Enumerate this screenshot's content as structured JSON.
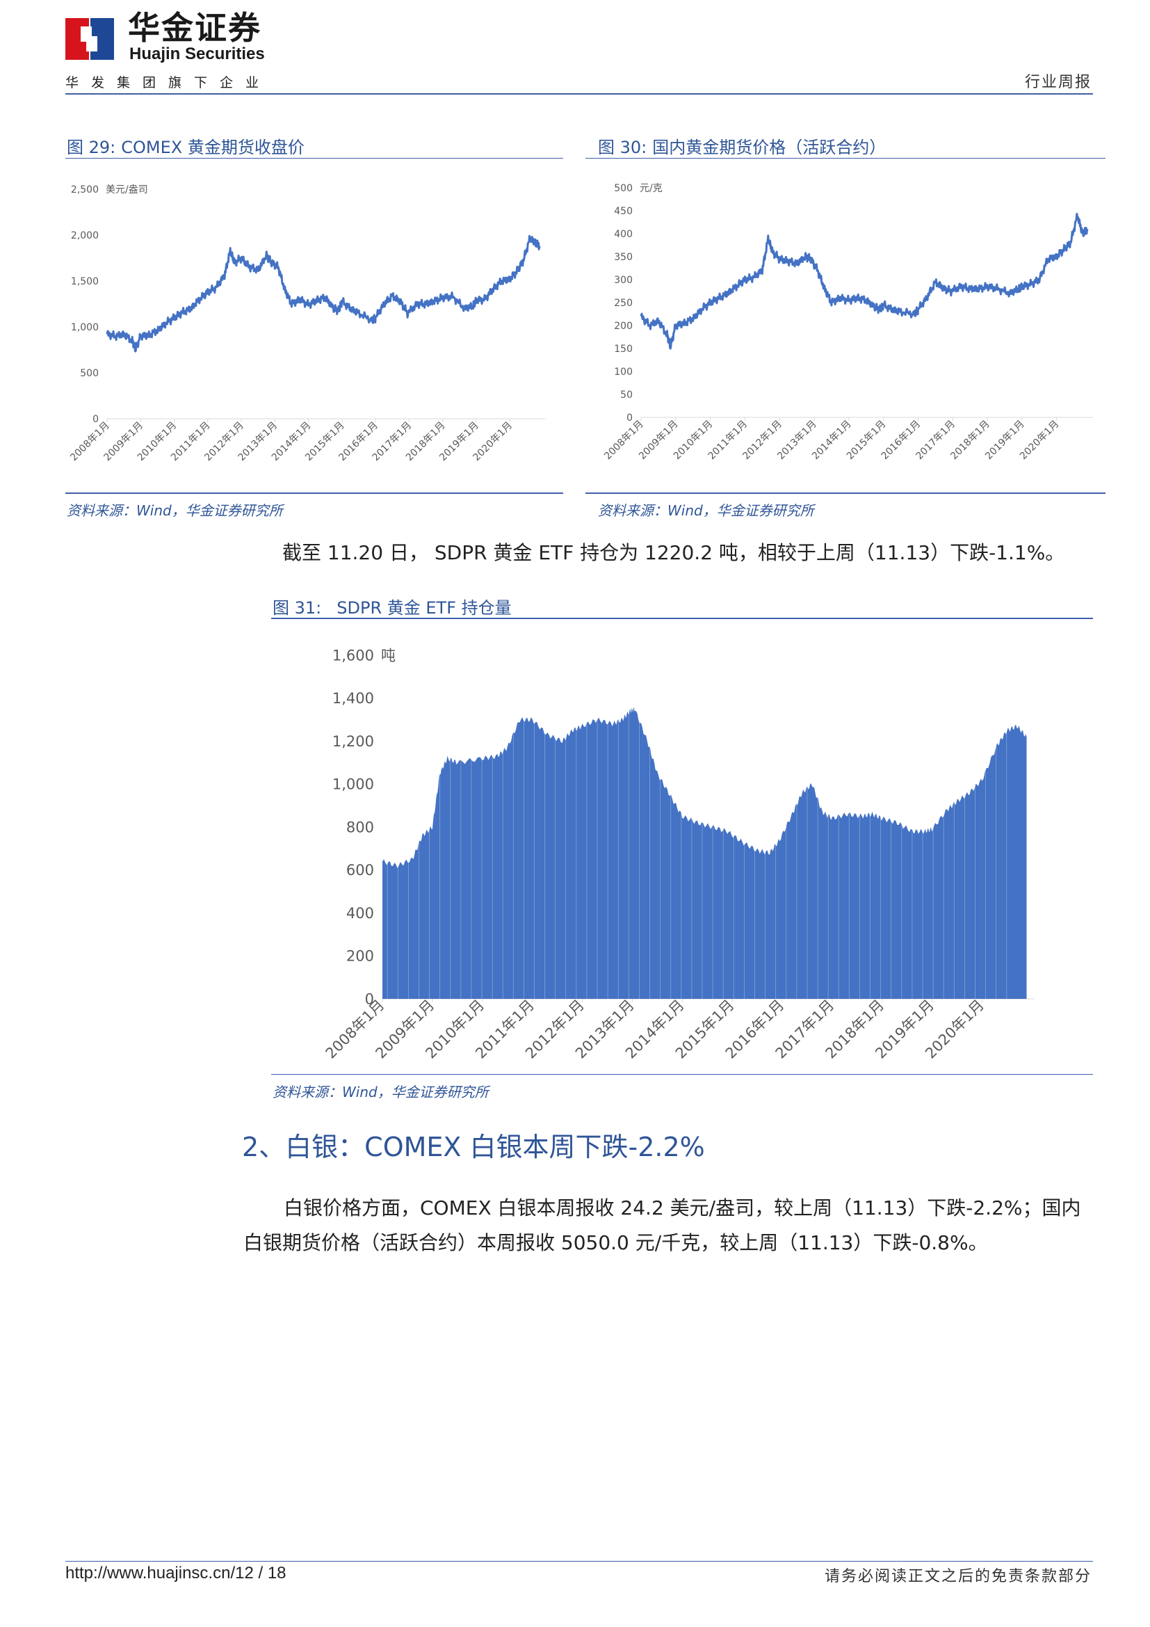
{
  "header": {
    "brand_cn": "华金证券",
    "brand_en": "Huajin Securities",
    "brand_sub": "华发集团旗下企业",
    "report_type": "行业周报",
    "logo_colors": {
      "red": "#d7141d",
      "blue": "#1e4796"
    }
  },
  "figures": {
    "fig29": {
      "number": "图 29:",
      "title": "COMEX 黄金期货收盘价",
      "source": "资料来源：Wind，华金证券研究所"
    },
    "fig30": {
      "number": "图 30:",
      "title": "国内黄金期货价格（活跃合约）",
      "source": "资料来源：Wind，华金证券研究所"
    },
    "fig31": {
      "number": "图 31:",
      "title": "SDPR 黄金 ETF 持仓量",
      "source": "资料来源：Wind，华金证券研究所"
    }
  },
  "body": {
    "etf_sentence": "截至 11.20 日， SDPR 黄金 ETF 持仓为 1220.2 吨，相较于上周（11.13）下跌-1.1%。",
    "section_heading": "2、白银：COMEX 白银本周下跌-2.2%",
    "silver_line1": "白银价格方面，COMEX 白银本周报收 24.2 美元/盎司，较上周（11.13）下跌-2.2%；国内",
    "silver_line2": "白银期货价格（活跃合约）本周报收 5050.0 元/千克，较上周（11.13）下跌-0.8%。"
  },
  "footer": {
    "url_page": "http://www.huajinsc.cn/12 / 18",
    "disclaimer": "请务必阅读正文之后的免责条款部分"
  },
  "chart_data": [
    {
      "id": "fig29",
      "type": "line",
      "color": "#4472c4",
      "unit_label": "美元/盎司",
      "ylim": [
        0,
        2500
      ],
      "yticks": [
        "0",
        "500",
        "1,000",
        "1,500",
        "2,000",
        "2,500"
      ],
      "xlabels": [
        "2008年1月",
        "2009年1月",
        "2010年1月",
        "2011年1月",
        "2012年1月",
        "2013年1月",
        "2014年1月",
        "2015年1月",
        "2016年1月",
        "2017年1月",
        "2018年1月",
        "2019年1月",
        "2020年1月"
      ],
      "x": [
        2008.0,
        2008.25,
        2008.5,
        2008.75,
        2008.85,
        2009.0,
        2009.25,
        2009.5,
        2009.75,
        2010.0,
        2010.25,
        2010.5,
        2010.75,
        2011.0,
        2011.25,
        2011.5,
        2011.67,
        2011.8,
        2012.0,
        2012.25,
        2012.5,
        2012.75,
        2012.9,
        2013.1,
        2013.3,
        2013.5,
        2013.75,
        2014.0,
        2014.25,
        2014.5,
        2014.75,
        2014.9,
        2015.0,
        2015.25,
        2015.5,
        2015.9,
        2016.0,
        2016.25,
        2016.5,
        2016.75,
        2016.95,
        2017.25,
        2017.5,
        2017.75,
        2018.0,
        2018.3,
        2018.65,
        2018.9,
        2019.0,
        2019.25,
        2019.5,
        2019.75,
        2020.0,
        2020.2,
        2020.4,
        2020.6,
        2020.75,
        2020.89
      ],
      "values": [
        920,
        900,
        920,
        850,
        760,
        900,
        910,
        960,
        1040,
        1100,
        1160,
        1200,
        1300,
        1380,
        1430,
        1560,
        1830,
        1700,
        1750,
        1650,
        1620,
        1780,
        1700,
        1650,
        1400,
        1250,
        1300,
        1240,
        1290,
        1320,
        1200,
        1180,
        1280,
        1200,
        1150,
        1070,
        1100,
        1250,
        1340,
        1270,
        1150,
        1250,
        1250,
        1280,
        1320,
        1330,
        1200,
        1230,
        1290,
        1300,
        1410,
        1500,
        1520,
        1600,
        1720,
        1970,
        1920,
        1880
      ]
    },
    {
      "id": "fig30",
      "type": "line",
      "color": "#4472c4",
      "unit_label": "元/克",
      "ylim": [
        0,
        500
      ],
      "yticks": [
        "0",
        "50",
        "100",
        "150",
        "200",
        "250",
        "300",
        "350",
        "400",
        "450",
        "500"
      ],
      "xlabels": [
        "2008年1月",
        "2009年1月",
        "2010年1月",
        "2011年1月",
        "2012年1月",
        "2013年1月",
        "2014年1月",
        "2015年1月",
        "2016年1月",
        "2017年1月",
        "2018年1月",
        "2019年1月",
        "2020年1月"
      ],
      "x": [
        2008.0,
        2008.25,
        2008.5,
        2008.75,
        2008.85,
        2009.0,
        2009.25,
        2009.5,
        2009.75,
        2010.0,
        2010.25,
        2010.5,
        2010.75,
        2011.0,
        2011.25,
        2011.5,
        2011.67,
        2011.8,
        2012.0,
        2012.25,
        2012.5,
        2012.75,
        2012.9,
        2013.1,
        2013.3,
        2013.5,
        2013.75,
        2014.0,
        2014.25,
        2014.5,
        2014.75,
        2014.9,
        2015.0,
        2015.25,
        2015.5,
        2015.9,
        2016.0,
        2016.25,
        2016.5,
        2016.75,
        2016.95,
        2017.25,
        2017.5,
        2017.75,
        2018.0,
        2018.3,
        2018.65,
        2018.9,
        2019.0,
        2019.25,
        2019.5,
        2019.75,
        2020.0,
        2020.2,
        2020.4,
        2020.6,
        2020.75,
        2020.89
      ],
      "values": [
        220,
        200,
        210,
        180,
        155,
        200,
        205,
        215,
        235,
        250,
        260,
        270,
        285,
        300,
        305,
        320,
        390,
        360,
        345,
        340,
        335,
        350,
        345,
        320,
        280,
        250,
        260,
        255,
        260,
        255,
        240,
        235,
        245,
        235,
        230,
        225,
        235,
        260,
        295,
        280,
        275,
        285,
        280,
        280,
        285,
        280,
        270,
        280,
        285,
        290,
        300,
        345,
        350,
        365,
        380,
        440,
        400,
        410
      ]
    },
    {
      "id": "fig31",
      "type": "area",
      "color": "#4472c4",
      "unit_label": "吨",
      "ylim": [
        0,
        1600
      ],
      "yticks": [
        "0",
        "200",
        "400",
        "600",
        "800",
        "1,000",
        "1,200",
        "1,400",
        "1,600"
      ],
      "xlabels": [
        "2008年1月",
        "2009年1月",
        "2010年1月",
        "2011年1月",
        "2012年1月",
        "2013年1月",
        "2014年1月",
        "2015年1月",
        "2016年1月",
        "2017年1月",
        "2018年1月",
        "2019年1月",
        "2020年1月"
      ],
      "x": [
        2008.0,
        2008.3,
        2008.6,
        2008.8,
        2009.0,
        2009.15,
        2009.3,
        2009.5,
        2010.0,
        2010.3,
        2010.5,
        2010.75,
        2011.0,
        2011.3,
        2011.6,
        2011.8,
        2012.0,
        2012.3,
        2012.6,
        2012.8,
        2012.95,
        2013.05,
        2013.3,
        2013.5,
        2013.75,
        2014.0,
        2014.3,
        2014.6,
        2014.9,
        2015.2,
        2015.5,
        2015.75,
        2015.95,
        2016.2,
        2016.4,
        2016.6,
        2016.8,
        2017.0,
        2017.3,
        2017.6,
        2017.8,
        2018.0,
        2018.3,
        2018.6,
        2018.85,
        2019.0,
        2019.3,
        2019.5,
        2019.75,
        2020.0,
        2020.3,
        2020.5,
        2020.7,
        2020.89
      ],
      "values": [
        640,
        620,
        650,
        760,
        800,
        1050,
        1120,
        1100,
        1120,
        1130,
        1170,
        1300,
        1300,
        1230,
        1200,
        1250,
        1270,
        1300,
        1280,
        1300,
        1340,
        1350,
        1200,
        1050,
        950,
        850,
        820,
        800,
        780,
        730,
        690,
        680,
        740,
        860,
        960,
        1000,
        870,
        840,
        860,
        850,
        860,
        840,
        820,
        780,
        780,
        790,
        880,
        920,
        960,
        1020,
        1180,
        1250,
        1270,
        1220
      ]
    }
  ]
}
